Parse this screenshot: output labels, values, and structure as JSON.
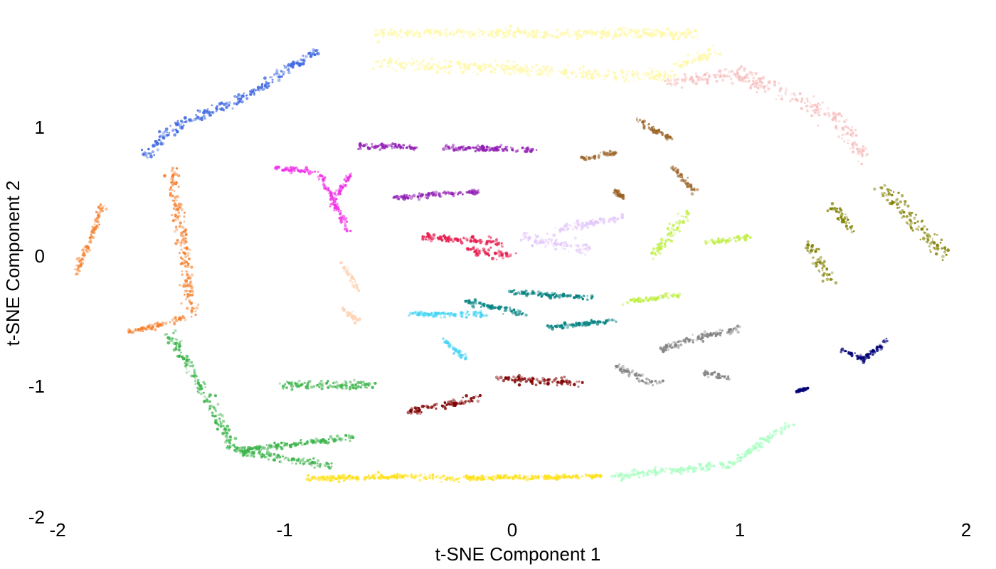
{
  "chart_data": {
    "type": "scatter",
    "title": "",
    "xlabel": "t-SNE Component 1",
    "ylabel": "t-SNE Component 2",
    "xlim": [
      -2,
      2
    ],
    "ylim": [
      -2,
      2
    ],
    "x_ticks": [
      -2,
      -1,
      0,
      1,
      2
    ],
    "y_ticks": [
      -2,
      -1,
      0,
      1
    ],
    "x_tick_labels": [
      "-2",
      "-1",
      "0",
      "1",
      "2"
    ],
    "y_tick_labels": [
      "-2",
      "-1",
      "0",
      "1"
    ],
    "grid": false,
    "legend": "none",
    "series": [
      {
        "color": "#4169E1",
        "segments": [
          [
            -1.62,
            0.78,
            -1.48,
            1.01,
            0.12
          ],
          [
            -1.48,
            1.01,
            -1.18,
            1.22,
            0.1
          ],
          [
            -1.18,
            1.22,
            -0.85,
            1.59,
            0.08
          ]
        ]
      },
      {
        "color": "#FFF8A8",
        "segments": [
          [
            -0.6,
            1.72,
            0.8,
            1.72,
            0.1
          ],
          [
            -0.6,
            1.5,
            0.72,
            1.38,
            0.12
          ],
          [
            0.7,
            1.45,
            0.9,
            1.58,
            0.12
          ]
        ]
      },
      {
        "color": "#F7BFBF",
        "segments": [
          [
            0.68,
            1.35,
            1.0,
            1.4,
            0.12
          ],
          [
            1.0,
            1.4,
            1.42,
            1.08,
            0.18
          ],
          [
            1.42,
            1.08,
            1.55,
            0.75,
            0.15
          ]
        ]
      },
      {
        "color": "#F58231",
        "segments": [
          [
            -1.5,
            0.65,
            -1.4,
            -0.45,
            0.12
          ],
          [
            -1.8,
            0.4,
            -1.92,
            -0.15,
            0.06
          ],
          [
            -1.7,
            -0.6,
            -1.45,
            -0.48,
            0.06
          ]
        ]
      },
      {
        "color": "#FDD5B8",
        "segments": [
          [
            -0.75,
            -0.05,
            -0.68,
            -0.25,
            0.06
          ],
          [
            -0.75,
            -0.4,
            -0.68,
            -0.5,
            0.06
          ]
        ]
      },
      {
        "color": "#F032E6",
        "segments": [
          [
            -1.05,
            0.68,
            -0.88,
            0.65,
            0.06
          ],
          [
            -0.85,
            0.65,
            -0.72,
            0.18,
            0.06
          ],
          [
            -0.8,
            0.4,
            -0.7,
            0.65,
            0.06
          ]
        ]
      },
      {
        "color": "#911EB4",
        "segments": [
          [
            -0.68,
            0.85,
            -0.42,
            0.84,
            0.06
          ],
          [
            -0.3,
            0.84,
            0.1,
            0.82,
            0.06
          ],
          [
            -0.52,
            0.45,
            -0.15,
            0.5,
            0.05
          ]
        ]
      },
      {
        "color": "#E6194B",
        "segments": [
          [
            -0.2,
            0.05,
            0.0,
            0.0,
            0.1
          ],
          [
            -0.4,
            0.15,
            -0.05,
            0.1,
            0.08
          ]
        ]
      },
      {
        "color": "#E3C8FA",
        "segments": [
          [
            0.05,
            0.15,
            0.35,
            0.05,
            0.15
          ],
          [
            0.2,
            0.2,
            0.48,
            0.3,
            0.08
          ]
        ]
      },
      {
        "color": "#008080",
        "segments": [
          [
            -0.2,
            -0.35,
            0.05,
            -0.45,
            0.06
          ],
          [
            0.0,
            -0.28,
            0.35,
            -0.32,
            0.05
          ],
          [
            0.15,
            -0.55,
            0.45,
            -0.5,
            0.05
          ]
        ]
      },
      {
        "color": "#42D4F4",
        "segments": [
          [
            -0.45,
            -0.45,
            -0.12,
            -0.45,
            0.06
          ],
          [
            -0.3,
            -0.65,
            -0.2,
            -0.8,
            0.06
          ]
        ]
      },
      {
        "color": "#BFEF45",
        "segments": [
          [
            0.62,
            0.0,
            0.78,
            0.35,
            0.1
          ],
          [
            0.5,
            -0.35,
            0.75,
            -0.3,
            0.05
          ],
          [
            0.85,
            0.1,
            1.05,
            0.15,
            0.05
          ]
        ]
      },
      {
        "color": "#9A6324",
        "segments": [
          [
            0.3,
            0.75,
            0.45,
            0.8,
            0.05
          ],
          [
            0.55,
            1.05,
            0.7,
            0.9,
            0.05
          ],
          [
            0.7,
            0.7,
            0.8,
            0.5,
            0.05
          ],
          [
            0.45,
            0.5,
            0.5,
            0.45,
            0.05
          ]
        ]
      },
      {
        "color": "#808000",
        "segments": [
          [
            1.3,
            0.1,
            1.4,
            -0.2,
            0.12
          ],
          [
            1.62,
            0.55,
            1.9,
            0.0,
            0.15
          ],
          [
            1.4,
            0.4,
            1.5,
            0.2,
            0.1
          ]
        ]
      },
      {
        "color": "#000075",
        "segments": [
          [
            1.45,
            -0.72,
            1.55,
            -0.8,
            0.05
          ],
          [
            1.55,
            -0.8,
            1.65,
            -0.65,
            0.05
          ],
          [
            1.25,
            -1.05,
            1.3,
            -1.02,
            0.03
          ]
        ]
      },
      {
        "color": "#808080",
        "segments": [
          [
            0.45,
            -0.85,
            0.65,
            -1.0,
            0.08
          ],
          [
            0.65,
            -0.72,
            1.0,
            -0.55,
            0.08
          ],
          [
            0.85,
            -0.9,
            0.95,
            -0.95,
            0.06
          ]
        ]
      },
      {
        "color": "#AAFFC3",
        "segments": [
          [
            0.45,
            -1.7,
            0.95,
            -1.62,
            0.08
          ],
          [
            0.95,
            -1.62,
            1.22,
            -1.3,
            0.08
          ]
        ]
      },
      {
        "color": "#FFE119",
        "segments": [
          [
            -0.9,
            -1.72,
            -0.35,
            -1.7,
            0.06
          ],
          [
            -0.35,
            -1.72,
            0.4,
            -1.7,
            0.05
          ]
        ]
      },
      {
        "color": "#800000",
        "segments": [
          [
            -0.05,
            -0.95,
            0.3,
            -0.98,
            0.08
          ],
          [
            -0.45,
            -1.2,
            -0.15,
            -1.1,
            0.08
          ]
        ]
      },
      {
        "color": "#3CB44B",
        "segments": [
          [
            -1.5,
            -0.62,
            -1.22,
            -1.5,
            0.12
          ],
          [
            -1.22,
            -1.5,
            -0.8,
            -1.62,
            0.08
          ],
          [
            -1.0,
            -1.0,
            -0.6,
            -1.0,
            0.1
          ],
          [
            -1.2,
            -1.5,
            -0.7,
            -1.4,
            0.06
          ]
        ]
      }
    ]
  }
}
